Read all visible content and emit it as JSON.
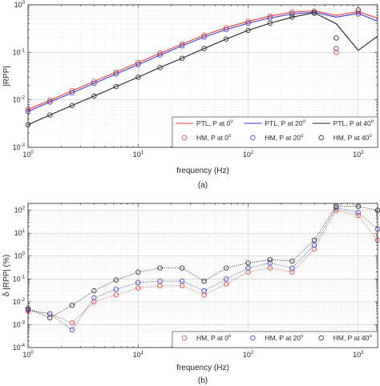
{
  "chart_data": [
    {
      "type": "line",
      "panel_caption": "(a)",
      "title": "",
      "xlabel": "frequency (Hz)",
      "ylabel": "|RPP|",
      "xscale": "log",
      "yscale": "log",
      "xlim": [
        1,
        1500
      ],
      "ylim": [
        0.001,
        1
      ],
      "x_ticks": [
        1,
        10,
        100,
        1000
      ],
      "y_ticks": [
        0.001,
        0.01,
        0.1,
        1
      ],
      "x_tick_labels": [
        {
          "base": "10",
          "exp": "0"
        },
        {
          "base": "10",
          "exp": "1"
        },
        {
          "base": "10",
          "exp": "2"
        },
        {
          "base": "10",
          "exp": "3"
        }
      ],
      "y_tick_labels": [
        {
          "base": "10",
          "exp": "-3"
        },
        {
          "base": "10",
          "exp": "-2"
        },
        {
          "base": "10",
          "exp": "-1"
        },
        {
          "base": "10",
          "exp": "0"
        }
      ],
      "grid": true,
      "legend_position": "bottom-right",
      "series": [
        {
          "name": "PTL, P at 0",
          "name_sup": "o",
          "kind": "line",
          "color": "#e8413c",
          "x": [
            1,
            1.58,
            2.51,
            3.98,
            6.31,
            10,
            15.8,
            25.1,
            39.8,
            63.1,
            100,
            158,
            251,
            398,
            631,
            1000,
            1500
          ],
          "y": [
            0.0063,
            0.0098,
            0.0155,
            0.0245,
            0.0385,
            0.061,
            0.096,
            0.15,
            0.23,
            0.33,
            0.45,
            0.58,
            0.7,
            0.75,
            0.6,
            0.72,
            0.52
          ]
        },
        {
          "name": "PTL, P at 20",
          "name_sup": "o",
          "kind": "line",
          "color": "#3a3acf",
          "x": [
            1,
            1.58,
            2.51,
            3.98,
            6.31,
            10,
            15.8,
            25.1,
            39.8,
            63.1,
            100,
            158,
            251,
            398,
            631,
            1000,
            1500
          ],
          "y": [
            0.0057,
            0.009,
            0.014,
            0.0222,
            0.035,
            0.055,
            0.087,
            0.137,
            0.21,
            0.3,
            0.41,
            0.53,
            0.64,
            0.7,
            0.55,
            0.66,
            0.45
          ]
        },
        {
          "name": "PTL, P at 40",
          "name_sup": "o",
          "kind": "line",
          "color": "#222222",
          "x": [
            1,
            1.58,
            2.51,
            3.98,
            6.31,
            10,
            15.8,
            25.1,
            39.8,
            63.1,
            100,
            158,
            251,
            398,
            631,
            1000,
            1500
          ],
          "y": [
            0.003,
            0.0048,
            0.0076,
            0.012,
            0.019,
            0.03,
            0.048,
            0.075,
            0.12,
            0.19,
            0.29,
            0.41,
            0.55,
            0.68,
            0.4,
            0.11,
            0.22
          ]
        },
        {
          "name": "HM, P at 0",
          "name_sup": "o",
          "kind": "marker",
          "color": "#e8413c",
          "x": [
            1,
            1.58,
            2.51,
            3.98,
            6.31,
            10,
            15.8,
            25.1,
            39.8,
            63.1,
            100,
            158,
            251,
            398,
            631,
            1000
          ],
          "y": [
            0.0063,
            0.0098,
            0.0155,
            0.0245,
            0.0385,
            0.061,
            0.096,
            0.15,
            0.23,
            0.33,
            0.45,
            0.58,
            0.7,
            0.74,
            0.1,
            0.7
          ]
        },
        {
          "name": "HM, P at 20",
          "name_sup": "o",
          "kind": "marker",
          "color": "#3a3acf",
          "x": [
            1,
            1.58,
            2.51,
            3.98,
            6.31,
            10,
            15.8,
            25.1,
            39.8,
            63.1,
            100,
            158,
            251,
            398,
            631,
            1000
          ],
          "y": [
            0.0057,
            0.009,
            0.014,
            0.0222,
            0.035,
            0.055,
            0.087,
            0.137,
            0.21,
            0.3,
            0.41,
            0.53,
            0.64,
            0.69,
            0.12,
            0.64
          ]
        },
        {
          "name": "HM, P at 40",
          "name_sup": "o",
          "kind": "marker",
          "color": "#222222",
          "x": [
            1,
            1.58,
            2.51,
            3.98,
            6.31,
            10,
            15.8,
            25.1,
            39.8,
            63.1,
            100,
            158,
            251,
            398,
            631,
            1000
          ],
          "y": [
            0.003,
            0.0048,
            0.0076,
            0.012,
            0.019,
            0.03,
            0.048,
            0.075,
            0.12,
            0.19,
            0.29,
            0.41,
            0.55,
            0.67,
            0.2,
            0.78
          ]
        }
      ]
    },
    {
      "type": "line",
      "panel_caption": "(b)",
      "title": "",
      "xlabel": "frequency (Hz)",
      "ylabel": "δ |RPP| (%)",
      "xscale": "log",
      "yscale": "log",
      "xlim": [
        1,
        1500
      ],
      "ylim": [
        0.0001,
        200
      ],
      "x_ticks": [
        1,
        10,
        100,
        1000
      ],
      "y_ticks": [
        0.0001,
        0.001,
        0.01,
        0.1,
        1,
        10,
        100
      ],
      "x_tick_labels": [
        {
          "base": "10",
          "exp": "0"
        },
        {
          "base": "10",
          "exp": "1"
        },
        {
          "base": "10",
          "exp": "2"
        },
        {
          "base": "10",
          "exp": "3"
        }
      ],
      "y_tick_labels": [
        {
          "base": "10",
          "exp": "-4"
        },
        {
          "base": "10",
          "exp": "-3"
        },
        {
          "base": "10",
          "exp": "-2"
        },
        {
          "base": "10",
          "exp": "-1"
        },
        {
          "base": "10",
          "exp": "0"
        },
        {
          "base": "10",
          "exp": "1"
        },
        {
          "base": "10",
          "exp": "2"
        }
      ],
      "grid": true,
      "legend_position": "bottom-right",
      "series": [
        {
          "name": "HM, P at 0",
          "name_sup": "o",
          "kind": "dotted-marker",
          "color": "#e8413c",
          "x": [
            1,
            1.58,
            2.51,
            3.98,
            6.31,
            10,
            15.8,
            25.1,
            39.8,
            63.1,
            100,
            158,
            251,
            398,
            631,
            1000,
            1500
          ],
          "y": [
            0.004,
            0.003,
            0.0012,
            0.01,
            0.02,
            0.04,
            0.05,
            0.05,
            0.02,
            0.06,
            0.2,
            0.3,
            0.2,
            2,
            100,
            60,
            5
          ]
        },
        {
          "name": "HM, P at 20",
          "name_sup": "o",
          "kind": "dotted-marker",
          "color": "#3a3acf",
          "x": [
            1,
            1.58,
            2.51,
            3.98,
            6.31,
            10,
            15.8,
            25.1,
            39.8,
            63.1,
            100,
            158,
            251,
            398,
            631,
            1000,
            1500
          ],
          "y": [
            0.0045,
            0.003,
            0.0006,
            0.015,
            0.035,
            0.07,
            0.08,
            0.08,
            0.03,
            0.1,
            0.3,
            0.5,
            0.3,
            3,
            130,
            80,
            15
          ]
        },
        {
          "name": "HM, P at 40",
          "name_sup": "o",
          "kind": "dotted-marker",
          "color": "#222222",
          "x": [
            1,
            1.58,
            2.51,
            3.98,
            6.31,
            10,
            15.8,
            25.1,
            39.8,
            63.1,
            100,
            158,
            251,
            398,
            631,
            1000,
            1500
          ],
          "y": [
            0.005,
            0.002,
            0.007,
            0.03,
            0.09,
            0.2,
            0.3,
            0.3,
            0.08,
            0.3,
            0.5,
            0.7,
            0.6,
            5,
            150,
            150,
            100
          ]
        }
      ]
    }
  ]
}
